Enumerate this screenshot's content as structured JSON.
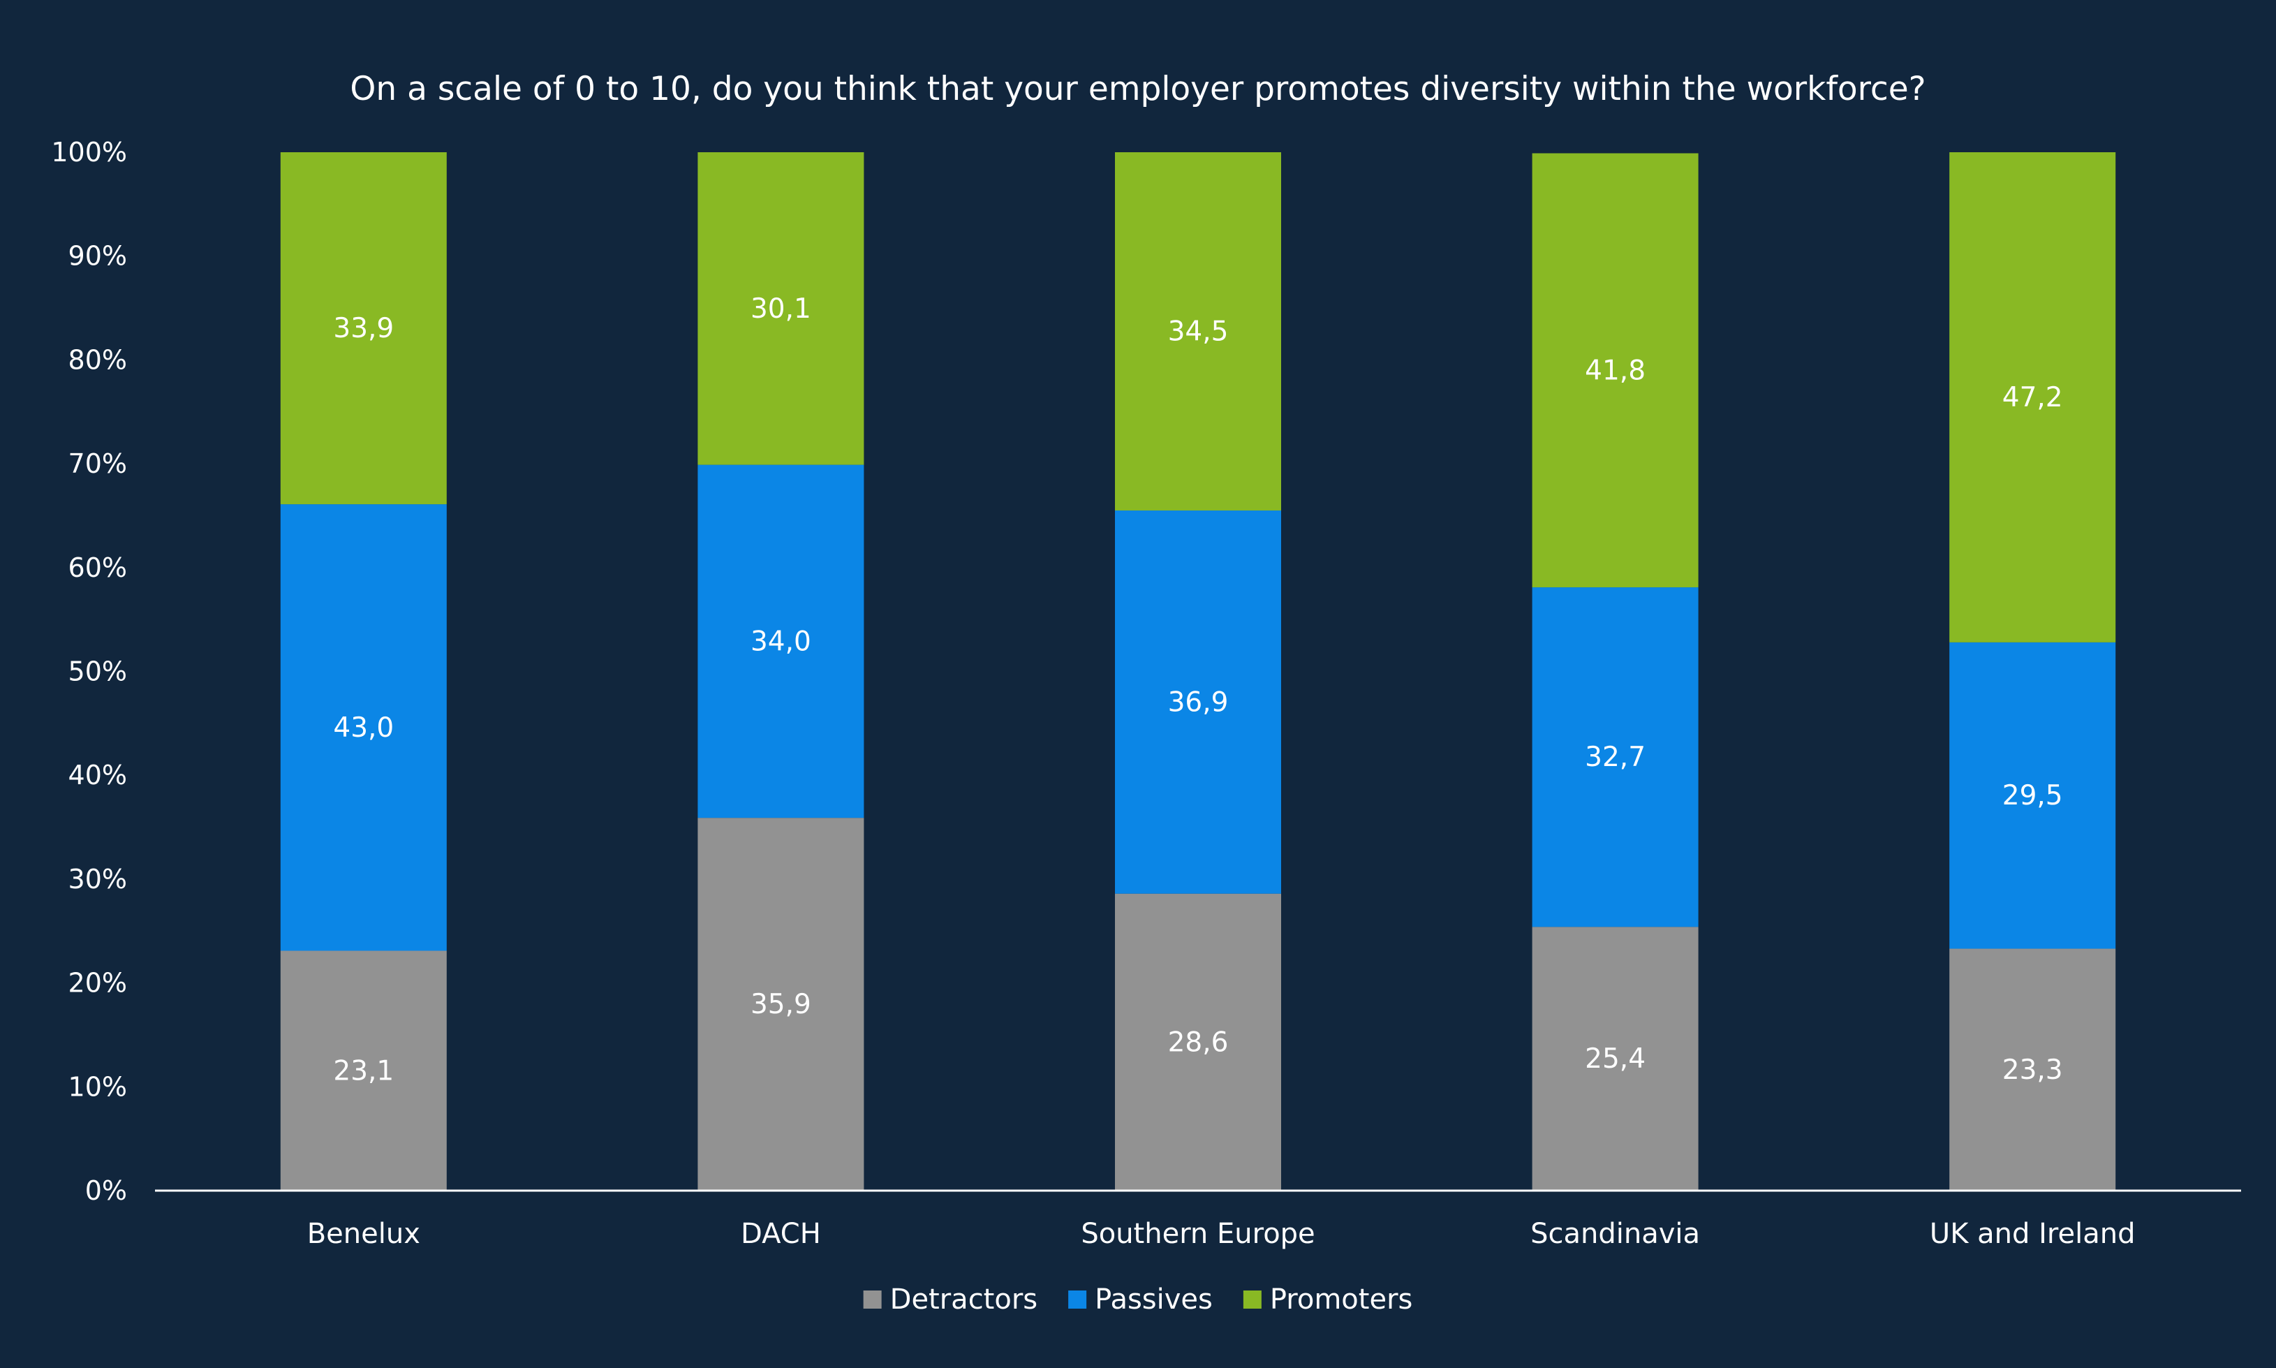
{
  "chart_data": {
    "type": "bar",
    "stacked": true,
    "title": "On a scale of 0 to 10, do you think that your employer promotes diversity within the workforce?",
    "xlabel": "",
    "ylabel": "",
    "ylim": [
      0,
      100
    ],
    "yticks": [
      "0%",
      "10%",
      "20%",
      "30%",
      "40%",
      "50%",
      "60%",
      "70%",
      "80%",
      "90%",
      "100%"
    ],
    "categories": [
      "Benelux",
      "DACH",
      "Southern Europe",
      "Scandinavia",
      "UK and Ireland"
    ],
    "series": [
      {
        "name": "Detractors",
        "color": "#929292",
        "values": [
          23.1,
          35.9,
          28.6,
          25.4,
          23.3
        ],
        "labels": [
          "23,1",
          "35,9",
          "28,6",
          "25,4",
          "23,3"
        ]
      },
      {
        "name": "Passives",
        "color": "#0b86e6",
        "values": [
          43.0,
          34.0,
          36.9,
          32.7,
          29.5
        ],
        "labels": [
          "43,0",
          "34,0",
          "36,9",
          "32,7",
          "29,5"
        ]
      },
      {
        "name": "Promoters",
        "color": "#89b924",
        "values": [
          33.9,
          30.1,
          34.5,
          41.8,
          47.2
        ],
        "labels": [
          "33,9",
          "30,1",
          "34,5",
          "41,8",
          "47,2"
        ]
      }
    ],
    "grid": false,
    "legend_position": "bottom",
    "background": "#11263d",
    "text_color": "#ffffff"
  }
}
